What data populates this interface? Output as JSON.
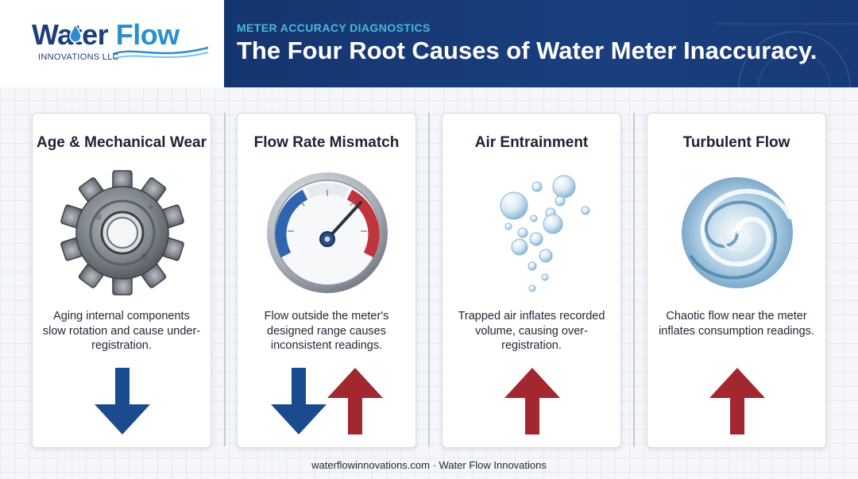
{
  "brand": {
    "name_part1": "Water",
    "name_part2": "Flow",
    "subtitle": "INNOVATIONS LLC"
  },
  "header": {
    "kicker": "METER ACCURACY DIAGNOSTICS",
    "title": "The Four Root Causes of Water Meter Inaccuracy."
  },
  "cards": [
    {
      "title": "Age & Mechanical Wear",
      "description": "Aging internal components slow rotation and cause under-registration.",
      "icon": "gear-icon",
      "indicator": [
        "down"
      ]
    },
    {
      "title": "Flow Rate Mismatch",
      "description": "Flow outside the meter's designed range causes inconsistent readings.",
      "icon": "gauge-icon",
      "indicator": [
        "down",
        "up"
      ]
    },
    {
      "title": "Air Entrainment",
      "description": "Trapped air inflates recorded volume, causing over-registration.",
      "icon": "bubbles-icon",
      "indicator": [
        "up"
      ]
    },
    {
      "title": "Turbulent Flow",
      "description": "Chaotic flow near the meter inflates consumption readings.",
      "icon": "swirl-icon",
      "indicator": [
        "up"
      ]
    }
  ],
  "colors": {
    "navy": "#15356e",
    "accent_teal": "#4ab8d8",
    "arrow_down": "#1b4b8f",
    "arrow_up": "#a3272f"
  },
  "footer": {
    "text": "waterflowinnovations.com · Water Flow Innovations"
  }
}
